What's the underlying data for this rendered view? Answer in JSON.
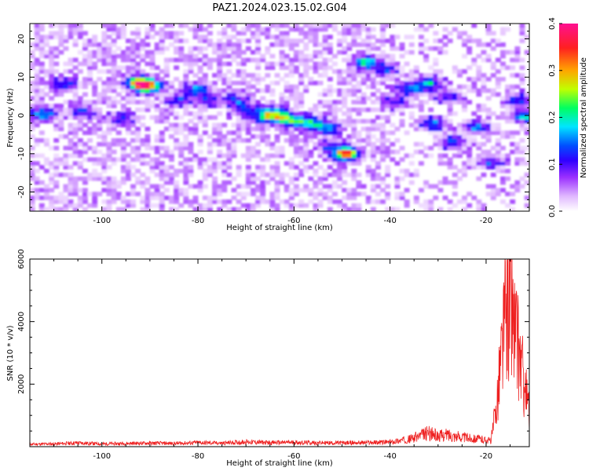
{
  "title": "PAZ1.2024.023.15.02.G04",
  "chart_data": [
    {
      "type": "heatmap",
      "xlabel": "Height of straight line (km)",
      "ylabel": "Frequency (Hz)",
      "xlim": [
        -115,
        -11
      ],
      "ylim": [
        -25,
        24
      ],
      "xticks": [
        -100,
        -80,
        -60,
        -40,
        -20
      ],
      "yticks": [
        -20,
        -10,
        0,
        10,
        20
      ],
      "colorbar": {
        "label": "Normalized spectral amplitude",
        "range": [
          0.0,
          0.4
        ],
        "ticks": [
          0.0,
          0.1,
          0.2,
          0.3,
          0.4
        ],
        "colors": [
          "#ffffff",
          "#e0b8ff",
          "#9b30ff",
          "#3000ff",
          "#0050ff",
          "#00e5ff",
          "#00ff60",
          "#c0ff00",
          "#ffa500",
          "#ff2020",
          "#ff1090"
        ]
      },
      "ridge": [
        {
          "x": -112,
          "y": 0.5,
          "v": 0.15
        },
        {
          "x": -108,
          "y": 8,
          "v": 0.12
        },
        {
          "x": -104,
          "y": 1,
          "v": 0.1
        },
        {
          "x": -96,
          "y": -1,
          "v": 0.1
        },
        {
          "x": -92,
          "y": 8.5,
          "v": 0.35
        },
        {
          "x": -90,
          "y": 7.5,
          "v": 0.2
        },
        {
          "x": -84,
          "y": 4,
          "v": 0.1
        },
        {
          "x": -80,
          "y": 7,
          "v": 0.13
        },
        {
          "x": -78,
          "y": 4,
          "v": 0.1
        },
        {
          "x": -72,
          "y": 4,
          "v": 0.1
        },
        {
          "x": -70,
          "y": 1.5,
          "v": 0.12
        },
        {
          "x": -66,
          "y": -0.5,
          "v": 0.12
        },
        {
          "x": -64,
          "y": 0.5,
          "v": 0.2
        },
        {
          "x": -61,
          "y": -1,
          "v": 0.2
        },
        {
          "x": -57,
          "y": -2,
          "v": 0.18
        },
        {
          "x": -53,
          "y": -3,
          "v": 0.15
        },
        {
          "x": -49,
          "y": -10,
          "v": 0.33
        },
        {
          "x": -52,
          "y": -8,
          "v": 0.1
        },
        {
          "x": -45,
          "y": 14,
          "v": 0.18
        },
        {
          "x": -41,
          "y": 12,
          "v": 0.1
        },
        {
          "x": -39,
          "y": 3.5,
          "v": 0.1
        },
        {
          "x": -36,
          "y": 7,
          "v": 0.14
        },
        {
          "x": -32,
          "y": 8.5,
          "v": 0.16
        },
        {
          "x": -31,
          "y": -2,
          "v": 0.14
        },
        {
          "x": -28,
          "y": 5,
          "v": 0.1
        },
        {
          "x": -27,
          "y": -7,
          "v": 0.12
        },
        {
          "x": -22,
          "y": -3,
          "v": 0.12
        },
        {
          "x": -19,
          "y": -12,
          "v": 0.1
        },
        {
          "x": -13,
          "y": 4,
          "v": 0.12
        },
        {
          "x": -12,
          "y": 0,
          "v": 0.15
        }
      ]
    },
    {
      "type": "line",
      "xlabel": "Height of straight line (km)",
      "ylabel": "SNR (10 * v/v)",
      "xlim": [
        -115,
        -11
      ],
      "ylim": [
        0,
        6000
      ],
      "xticks": [
        -100,
        -80,
        -60,
        -40,
        -20
      ],
      "yticks": [
        2000,
        4000,
        6000
      ],
      "color": "#ee2020",
      "series": [
        {
          "x": [
            -115,
            -110,
            -105,
            -100,
            -95,
            -90,
            -85,
            -80,
            -75,
            -70,
            -65,
            -60,
            -55,
            -50,
            -45,
            -40,
            -36,
            -32,
            -30,
            -28,
            -25,
            -22,
            -19,
            -18,
            -17,
            -16,
            -15,
            -14,
            -13,
            -12,
            -11
          ],
          "values": [
            100,
            110,
            150,
            110,
            130,
            140,
            130,
            160,
            140,
            190,
            160,
            170,
            150,
            150,
            160,
            180,
            300,
            550,
            420,
            480,
            380,
            320,
            240,
            1400,
            3400,
            5200,
            5900,
            4600,
            3600,
            2500,
            1300
          ]
        }
      ]
    }
  ]
}
